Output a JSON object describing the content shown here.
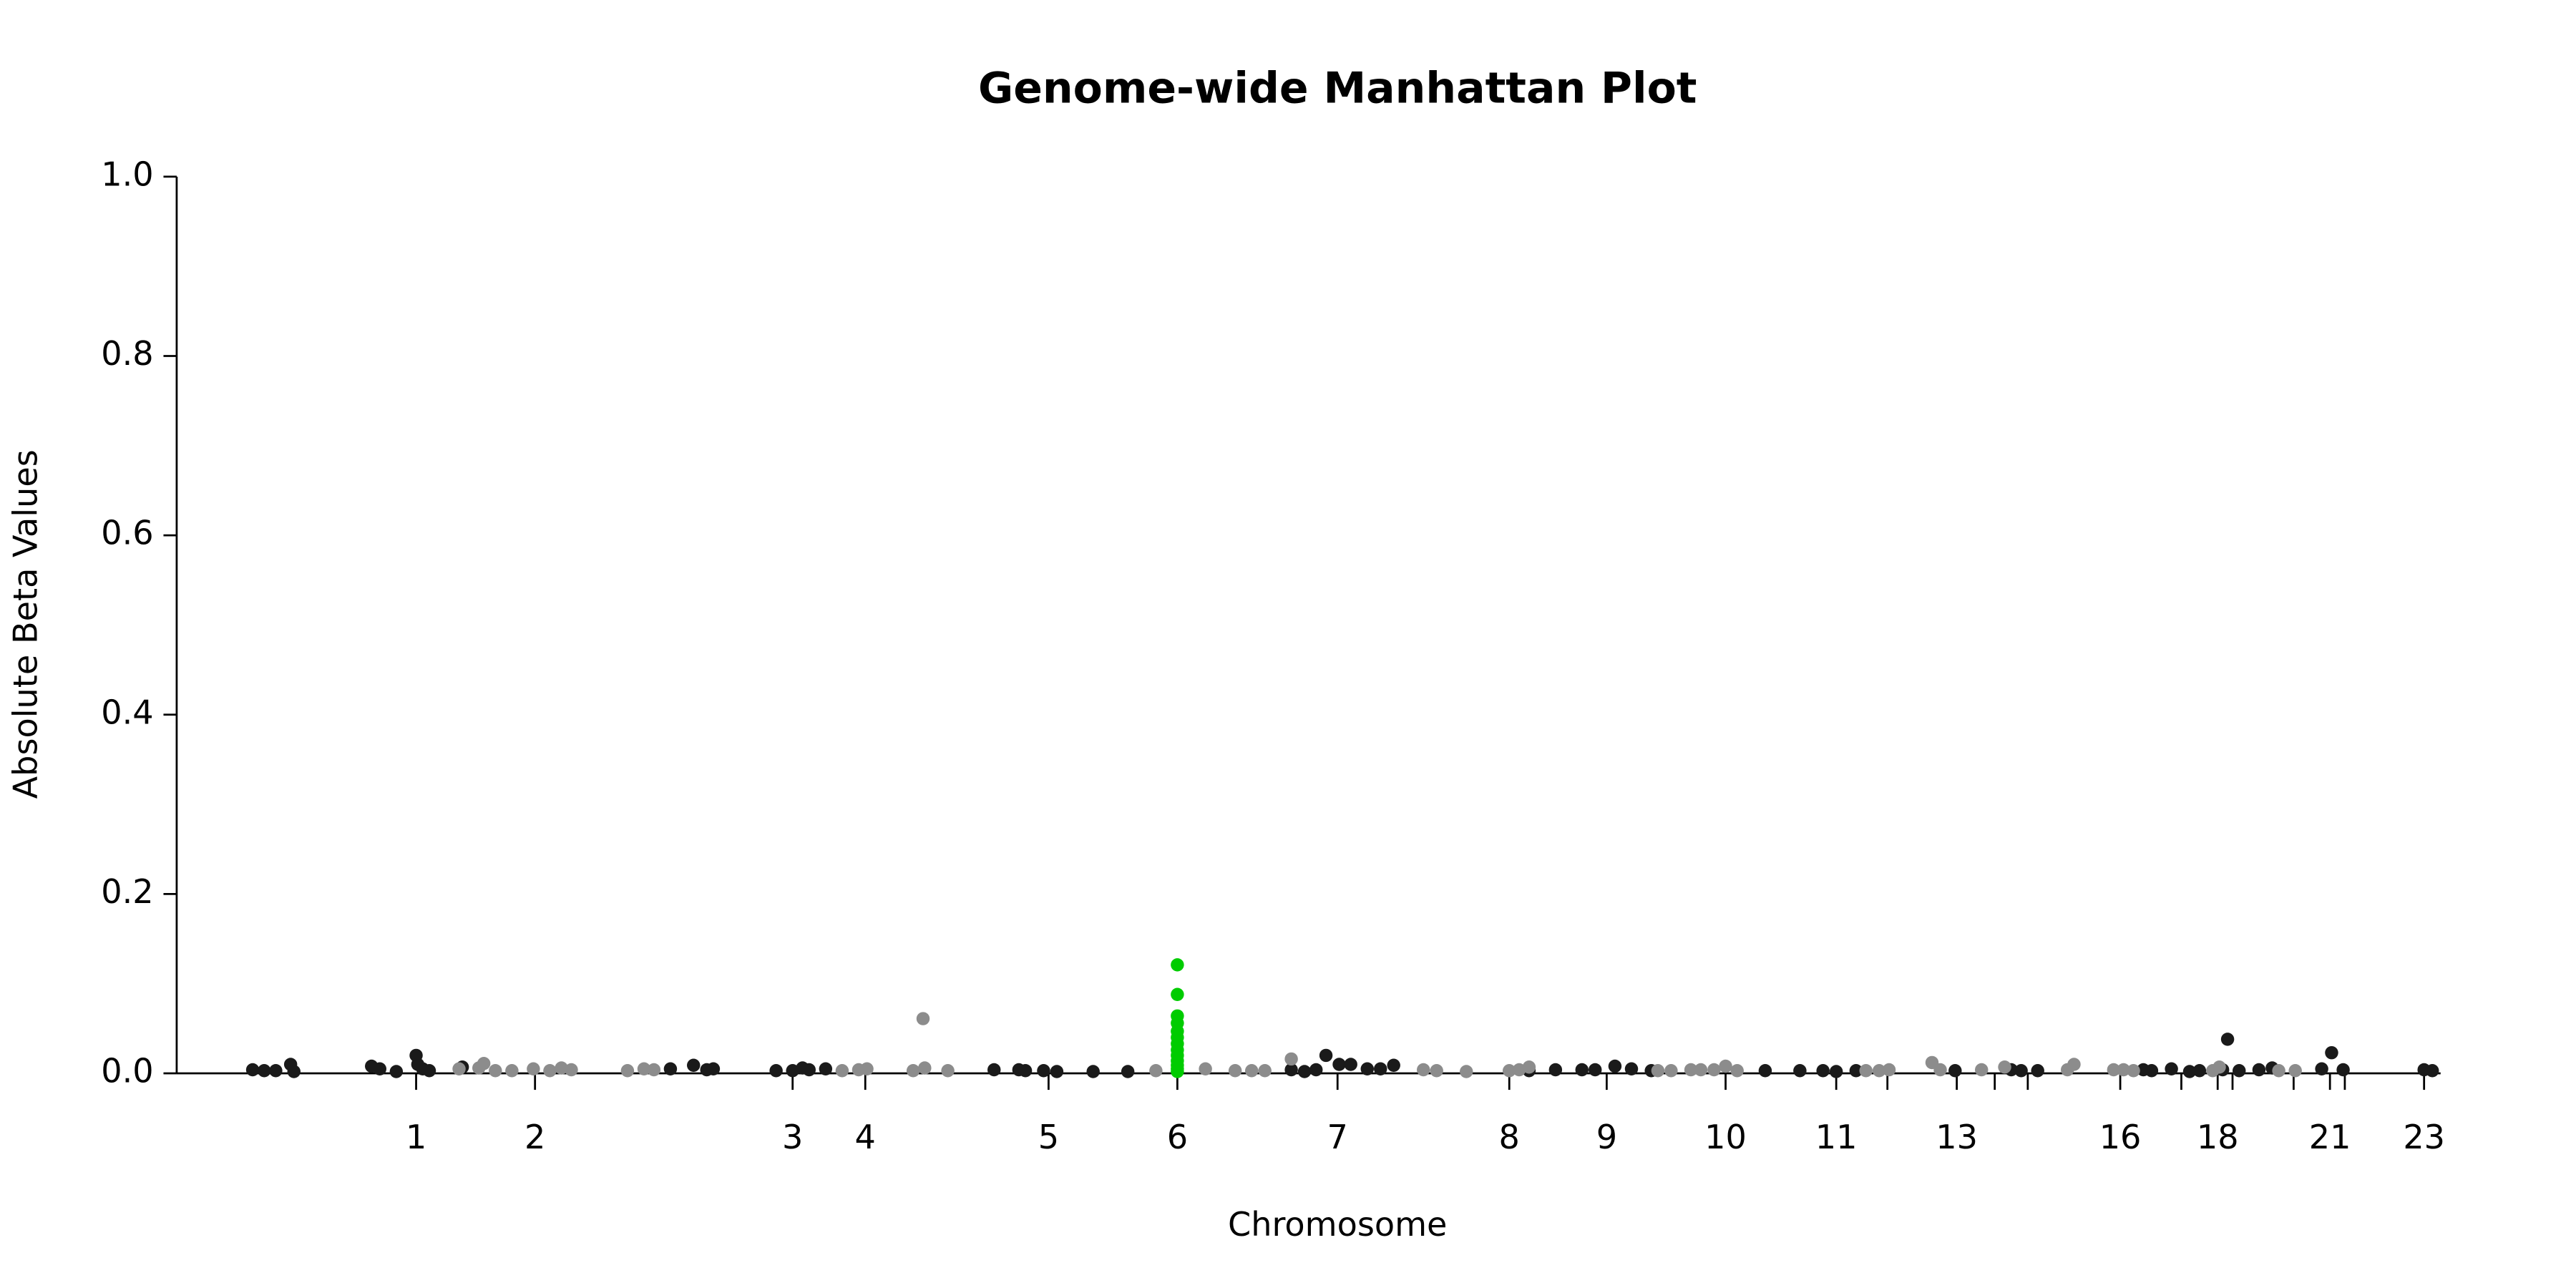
{
  "chart_data": {
    "type": "scatter",
    "title": "Genome-wide Manhattan Plot",
    "x_label": "Chromosome",
    "y_label": "Absolute Beta Values",
    "xlim": [
      107,
      1478
    ],
    "ylim": [
      0,
      1
    ],
    "yticks": [
      {
        "value": 0,
        "label": "0.0"
      },
      0.2,
      0.4,
      0.6,
      0.8,
      {
        "value": 1,
        "label": "1.0"
      }
    ],
    "xticks": [
      {
        "value": 252,
        "label": "1"
      },
      {
        "value": 324,
        "label": "2"
      },
      {
        "value": 480,
        "label": "3"
      },
      {
        "value": 524,
        "label": "4"
      },
      {
        "value": 635,
        "label": "5"
      },
      {
        "value": 713,
        "label": "6"
      },
      {
        "value": 810,
        "label": "7"
      },
      {
        "value": 914,
        "label": "8"
      },
      {
        "value": 973,
        "label": "9"
      },
      {
        "value": 1045,
        "label": "10"
      },
      {
        "value": 1112,
        "label": "11"
      },
      {
        "value": 1143,
        "label": null
      },
      {
        "value": 1185,
        "label": "13"
      },
      {
        "value": 1208,
        "label": null
      },
      {
        "value": 1228,
        "label": null
      },
      {
        "value": 1284,
        "label": "16"
      },
      {
        "value": 1321,
        "label": null
      },
      {
        "value": 1343,
        "label": "18"
      },
      {
        "value": 1352,
        "label": null
      },
      {
        "value": 1389,
        "label": null
      },
      {
        "value": 1411,
        "label": "21"
      },
      {
        "value": 1420,
        "label": null
      },
      {
        "value": 1468,
        "label": "23"
      }
    ],
    "series": [
      {
        "color": "#1a1a1a",
        "x": [
          153,
          160,
          167,
          176,
          178,
          225,
          230,
          240,
          252,
          253,
          256,
          260,
          280,
          406,
          420,
          428,
          432,
          470,
          480,
          486,
          490,
          500,
          602,
          617,
          621,
          632,
          640,
          662,
          683,
          782,
          790,
          797,
          803,
          811,
          818,
          828,
          836,
          844,
          926,
          942,
          958,
          966,
          978,
          988,
          1000,
          1069,
          1090,
          1104,
          1112,
          1124,
          1184,
          1218,
          1224,
          1234,
          1298,
          1303,
          1315,
          1326,
          1332,
          1346,
          1349,
          1356,
          1368,
          1376,
          1406,
          1412,
          1419,
          1468,
          1473
        ],
        "values": [
          0.004,
          0.003,
          0.003,
          0.01,
          0.002,
          0.008,
          0.005,
          0.002,
          0.02,
          0.01,
          0.005,
          0.003,
          0.007,
          0.005,
          0.009,
          0.004,
          0.005,
          0.003,
          0.003,
          0.006,
          0.004,
          0.005,
          0.004,
          0.004,
          0.003,
          0.003,
          0.002,
          0.002,
          0.002,
          0.004,
          0.002,
          0.004,
          0.02,
          0.01,
          0.01,
          0.005,
          0.005,
          0.009,
          0.003,
          0.004,
          0.004,
          0.004,
          0.008,
          0.005,
          0.003,
          0.003,
          0.003,
          0.003,
          0.002,
          0.003,
          0.003,
          0.004,
          0.003,
          0.003,
          0.004,
          0.003,
          0.005,
          0.002,
          0.003,
          0.004,
          0.038,
          0.003,
          0.004,
          0.006,
          0.005,
          0.023,
          0.004,
          0.004,
          0.003
        ]
      },
      {
        "color": "#8c8c8c",
        "x": [
          278,
          290,
          293,
          300,
          310,
          323,
          333,
          340,
          346,
          380,
          390,
          396,
          510,
          520,
          525,
          553,
          559,
          560,
          574,
          700,
          730,
          748,
          758,
          766,
          782,
          862,
          870,
          888,
          914,
          920,
          926,
          1004,
          1012,
          1024,
          1030,
          1038,
          1045,
          1052,
          1130,
          1138,
          1144,
          1170,
          1175,
          1200,
          1214,
          1252,
          1256,
          1280,
          1286,
          1292,
          1340,
          1344,
          1380,
          1390
        ],
        "values": [
          0.005,
          0.006,
          0.011,
          0.003,
          0.003,
          0.005,
          0.003,
          0.006,
          0.004,
          0.003,
          0.005,
          0.004,
          0.003,
          0.004,
          0.005,
          0.003,
          0.061,
          0.006,
          0.003,
          0.003,
          0.005,
          0.003,
          0.003,
          0.003,
          0.016,
          0.004,
          0.003,
          0.002,
          0.003,
          0.004,
          0.007,
          0.003,
          0.003,
          0.004,
          0.004,
          0.004,
          0.008,
          0.003,
          0.003,
          0.003,
          0.004,
          0.012,
          0.004,
          0.004,
          0.007,
          0.004,
          0.01,
          0.004,
          0.004,
          0.003,
          0.003,
          0.007,
          0.003,
          0.003
        ]
      },
      {
        "color": "#00cc00",
        "x": [
          713,
          713,
          713,
          713,
          713,
          713,
          713,
          713,
          713,
          713,
          713,
          713,
          713
        ],
        "values": [
          0.121,
          0.088,
          0.064,
          0.056,
          0.047,
          0.04,
          0.033,
          0.026,
          0.02,
          0.014,
          0.009,
          0.005,
          0.002
        ]
      }
    ]
  }
}
